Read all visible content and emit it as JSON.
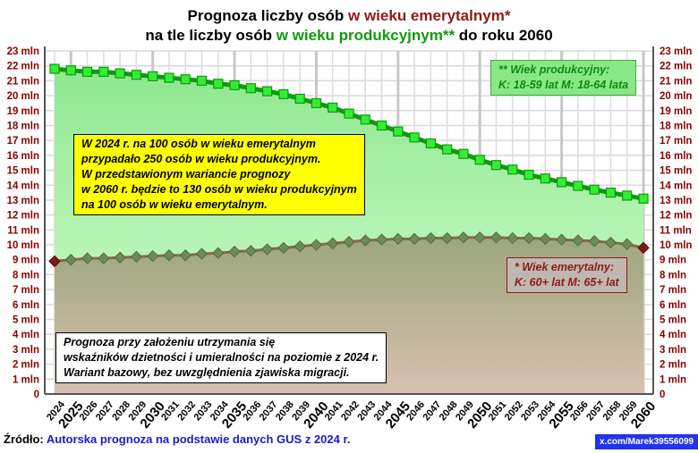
{
  "title": {
    "line1_pre": "Prognoza liczby osób ",
    "line1_em": "w wieku emerytalnym*",
    "line2_pre": "na tle liczby osób ",
    "line2_em": "w wieku produkcyjnym**",
    "line2_post": " do roku 2060"
  },
  "colors": {
    "productive": "#11aa11",
    "retirement": "#8b1a1a",
    "axis_labels": "#8b0000",
    "note_yellow": "#ffff00",
    "badge": "#2233ee"
  },
  "notes": {
    "yellow": [
      "W 2024 r. na 100 osób w wieku emerytalnym",
      "przypadało 250 osób w wieku produkcyjnym.",
      "W przedstawionym wariancie prognozy",
      "w 2060 r. będzie to 130 osób w wieku produkcyjnym",
      "na 100 osób w wieku emerytalnym."
    ],
    "productive_legend": [
      "** Wiek produkcyjny:",
      "K: 18-59 lat  M: 18-64 lata"
    ],
    "retirement_legend": [
      "* Wiek emerytalny:",
      "K: 60+ lat  M: 65+ lat"
    ],
    "assumption": [
      "Prognoza przy założeniu utrzymania się",
      "wskaźników dzietności i umieralności na poziomie z 2024 r.",
      "Wariant bazowy, bez uwzględnienia zjawiska migracji."
    ]
  },
  "source": {
    "label": "Źródło: ",
    "text": "Autorska prognoza na podstawie danych GUS z 2024 r."
  },
  "badge": "x.com/Marek39556099",
  "chart_data": {
    "type": "area",
    "ylim": [
      0,
      23
    ],
    "grid": true,
    "y_tick_labels": [
      "0",
      "1 mln",
      "2 mln",
      "3 mln",
      "4 mln",
      "5 mln",
      "6 mln",
      "7 mln",
      "8 mln",
      "9 mln",
      "10 mln",
      "11 mln",
      "12 mln",
      "13 mln",
      "14 mln",
      "15 mln",
      "16 mln",
      "17 mln",
      "18 mln",
      "19 mln",
      "20 mln",
      "21 mln",
      "22 mln",
      "23 mln"
    ],
    "x": [
      "2024",
      "2025",
      "2026",
      "2027",
      "2028",
      "2029",
      "2030",
      "2031",
      "2032",
      "2033",
      "2034",
      "2035",
      "2036",
      "2037",
      "2038",
      "2039",
      "2040",
      "2041",
      "2042",
      "2043",
      "2044",
      "2045",
      "2046",
      "2047",
      "2048",
      "2049",
      "2050",
      "2051",
      "2052",
      "2053",
      "2054",
      "2055",
      "2056",
      "2057",
      "2058",
      "2059",
      "2060"
    ],
    "series": [
      {
        "key": "productive",
        "values": [
          21.8,
          21.7,
          21.6,
          21.6,
          21.5,
          21.4,
          21.3,
          21.2,
          21.1,
          21.0,
          20.8,
          20.7,
          20.5,
          20.3,
          20.1,
          19.8,
          19.5,
          19.2,
          18.8,
          18.4,
          18.0,
          17.6,
          17.2,
          16.8,
          16.4,
          16.1,
          15.7,
          15.35,
          15.05,
          14.7,
          14.45,
          14.2,
          13.95,
          13.7,
          13.5,
          13.3,
          13.1
        ]
      },
      {
        "key": "retirement",
        "values": [
          8.9,
          9.0,
          9.1,
          9.1,
          9.15,
          9.2,
          9.25,
          9.3,
          9.3,
          9.4,
          9.45,
          9.55,
          9.6,
          9.7,
          9.8,
          9.9,
          10.0,
          10.1,
          10.2,
          10.3,
          10.35,
          10.4,
          10.4,
          10.45,
          10.45,
          10.5,
          10.5,
          10.5,
          10.45,
          10.45,
          10.4,
          10.35,
          10.3,
          10.25,
          10.15,
          10.05,
          9.8
        ]
      }
    ]
  }
}
